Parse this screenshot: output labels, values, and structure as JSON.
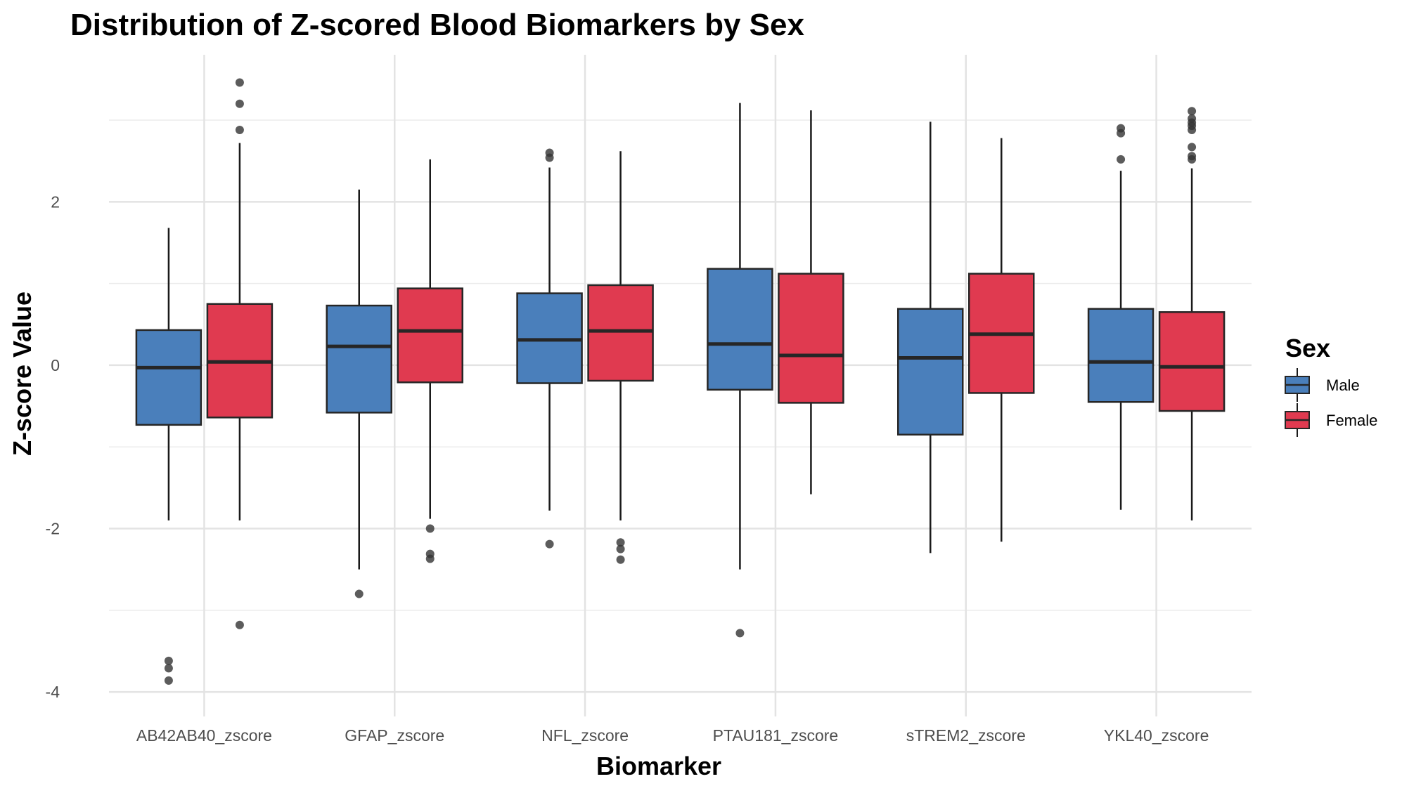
{
  "chart_data": {
    "type": "boxplot",
    "title": "Distribution of Z-scored Blood Biomarkers by Sex",
    "xlabel": "Biomarker",
    "ylabel": "Z-score Value",
    "ylim": [
      -4.3,
      3.8
    ],
    "yticks": [
      -4,
      -2,
      0,
      2
    ],
    "grid": true,
    "legend": {
      "title": "Sex",
      "position": "right"
    },
    "categories": [
      "AB42AB40_zscore",
      "GFAP_zscore",
      "NFL_zscore",
      "PTAU181_zscore",
      "sTREM2_zscore",
      "YKL40_zscore"
    ],
    "series": [
      {
        "name": "Male",
        "color": "#4a7fbb",
        "boxes": [
          {
            "lower_whisker": -1.9,
            "q1": -0.73,
            "median": -0.03,
            "q3": 0.43,
            "upper_whisker": 1.68,
            "outliers": [
              -3.62,
              -3.71,
              -3.86
            ]
          },
          {
            "lower_whisker": -2.5,
            "q1": -0.58,
            "median": 0.23,
            "q3": 0.73,
            "upper_whisker": 2.15,
            "outliers": [
              -2.8
            ]
          },
          {
            "lower_whisker": -1.78,
            "q1": -0.22,
            "median": 0.31,
            "q3": 0.88,
            "upper_whisker": 2.42,
            "outliers": [
              -2.19,
              2.54,
              2.6
            ]
          },
          {
            "lower_whisker": -2.5,
            "q1": -0.3,
            "median": 0.26,
            "q3": 1.18,
            "upper_whisker": 3.21,
            "outliers": [
              -3.28
            ]
          },
          {
            "lower_whisker": -2.3,
            "q1": -0.85,
            "median": 0.09,
            "q3": 0.69,
            "upper_whisker": 2.98,
            "outliers": []
          },
          {
            "lower_whisker": -1.77,
            "q1": -0.45,
            "median": 0.04,
            "q3": 0.69,
            "upper_whisker": 2.38,
            "outliers": [
              2.52,
              2.84,
              2.9
            ]
          }
        ]
      },
      {
        "name": "Female",
        "color": "#e03a50",
        "boxes": [
          {
            "lower_whisker": -1.9,
            "q1": -0.64,
            "median": 0.04,
            "q3": 0.75,
            "upper_whisker": 2.72,
            "outliers": [
              -3.18,
              2.88,
              3.2,
              3.46
            ]
          },
          {
            "lower_whisker": -1.88,
            "q1": -0.21,
            "median": 0.42,
            "q3": 0.94,
            "upper_whisker": 2.52,
            "outliers": [
              -2.0,
              -2.31,
              -2.37
            ]
          },
          {
            "lower_whisker": -1.9,
            "q1": -0.19,
            "median": 0.42,
            "q3": 0.98,
            "upper_whisker": 2.62,
            "outliers": [
              -2.17,
              -2.25,
              -2.38
            ]
          },
          {
            "lower_whisker": -1.58,
            "q1": -0.46,
            "median": 0.12,
            "q3": 1.12,
            "upper_whisker": 3.12,
            "outliers": []
          },
          {
            "lower_whisker": -2.16,
            "q1": -0.34,
            "median": 0.38,
            "q3": 1.12,
            "upper_whisker": 2.78,
            "outliers": []
          },
          {
            "lower_whisker": -1.9,
            "q1": -0.56,
            "median": -0.02,
            "q3": 0.65,
            "upper_whisker": 2.41,
            "outliers": [
              2.52,
              2.56,
              2.67,
              2.88,
              2.93,
              2.97,
              3.02,
              3.11
            ]
          }
        ]
      }
    ]
  }
}
